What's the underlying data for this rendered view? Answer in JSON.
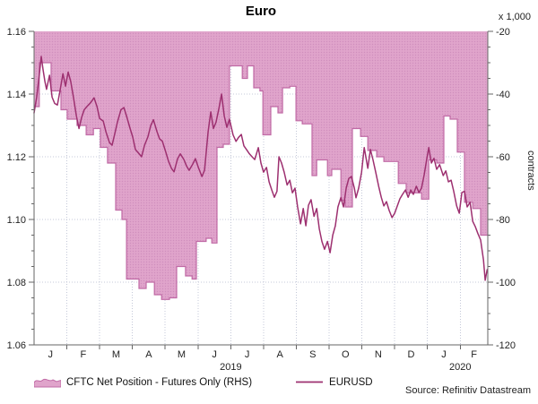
{
  "title": "Euro",
  "right_axis_unit": "x 1,000",
  "right_axis_label": "contracts",
  "source": "Source: Refinitiv Datastream",
  "legend": [
    {
      "label": "CFTC Net Position - Futures Only (RHS)",
      "type": "area"
    },
    {
      "label": "EURUSD",
      "type": "line"
    }
  ],
  "colors": {
    "area_fill": "#e0a4cb",
    "area_dot": "#cf8ebd",
    "area_edge": "#c06aa5",
    "line": "#9d3070",
    "grid": "#c4c8d8",
    "axis": "#666666",
    "text": "#222222"
  },
  "chart_data": {
    "type": "combo",
    "title": "Euro",
    "x_axis": {
      "months": [
        "J",
        "F",
        "M",
        "A",
        "M",
        "J",
        "J",
        "A",
        "S",
        "O",
        "N",
        "D",
        "J",
        "F"
      ],
      "years": [
        {
          "label": "2019",
          "month_index": 6
        },
        {
          "label": "2020",
          "month_index": 13
        }
      ],
      "domain_months": 13.84,
      "grid": true
    },
    "left_axis": {
      "min": 1.06,
      "max": 1.16,
      "ticks": [
        1.06,
        1.08,
        1.1,
        1.12,
        1.14,
        1.16
      ],
      "minor_step": 0.005,
      "series_name": "EURUSD"
    },
    "right_axis": {
      "min": -120,
      "max": -20,
      "ticks": [
        -20,
        -40,
        -60,
        -80,
        -100,
        -120
      ],
      "minor_step": 5,
      "unit": "x 1,000",
      "label": "contracts",
      "series_name": "CFTC Net Position - Futures Only (RHS)"
    },
    "series": [
      {
        "name": "CFTC Net Position - Futures Only (RHS)",
        "type": "step-area",
        "axis": "right",
        "points": [
          [
            0.0,
            -44
          ],
          [
            0.16,
            -30
          ],
          [
            0.52,
            -39
          ],
          [
            0.82,
            -45
          ],
          [
            1.01,
            -48
          ],
          [
            1.31,
            -50
          ],
          [
            1.59,
            -53
          ],
          [
            1.81,
            -51
          ],
          [
            2.02,
            -57
          ],
          [
            2.24,
            -62
          ],
          [
            2.49,
            -77
          ],
          [
            2.68,
            -80
          ],
          [
            2.82,
            -99
          ],
          [
            3.2,
            -102
          ],
          [
            3.42,
            -100
          ],
          [
            3.67,
            -104
          ],
          [
            3.89,
            -105.5
          ],
          [
            4.13,
            -105
          ],
          [
            4.35,
            -95
          ],
          [
            4.62,
            -98
          ],
          [
            4.82,
            -99
          ],
          [
            4.95,
            -87
          ],
          [
            5.25,
            -86
          ],
          [
            5.42,
            -87.5
          ],
          [
            5.58,
            -57
          ],
          [
            5.77,
            -56
          ],
          [
            5.96,
            -31
          ],
          [
            6.35,
            -35
          ],
          [
            6.51,
            -31
          ],
          [
            6.7,
            -38
          ],
          [
            6.89,
            -39
          ],
          [
            6.98,
            -53
          ],
          [
            7.22,
            -44
          ],
          [
            7.44,
            -46
          ],
          [
            7.58,
            -38
          ],
          [
            7.8,
            -37.5
          ],
          [
            7.99,
            -48.5
          ],
          [
            8.18,
            -49.5
          ],
          [
            8.48,
            -66
          ],
          [
            8.62,
            -61
          ],
          [
            8.95,
            -66
          ],
          [
            9.08,
            -64
          ],
          [
            9.36,
            -74
          ],
          [
            9.49,
            -76
          ],
          [
            9.71,
            -51
          ],
          [
            9.96,
            -53.5
          ],
          [
            10.18,
            -58
          ],
          [
            10.45,
            -60
          ],
          [
            10.67,
            -61.5
          ],
          [
            10.94,
            -61.5
          ],
          [
            11.11,
            -68.5
          ],
          [
            11.35,
            -71.5
          ],
          [
            11.6,
            -71.5
          ],
          [
            11.82,
            -73.5
          ],
          [
            12.04,
            -61
          ],
          [
            12.28,
            -62
          ],
          [
            12.5,
            -47
          ],
          [
            12.69,
            -48
          ],
          [
            12.91,
            -58.5
          ],
          [
            13.13,
            -74.5
          ],
          [
            13.38,
            -76.5
          ],
          [
            13.62,
            -85
          ]
        ]
      },
      {
        "name": "EURUSD",
        "type": "line",
        "axis": "left",
        "points": [
          [
            0.0,
            1.134
          ],
          [
            0.08,
            1.139
          ],
          [
            0.16,
            1.146
          ],
          [
            0.22,
            1.152
          ],
          [
            0.27,
            1.148
          ],
          [
            0.33,
            1.144
          ],
          [
            0.38,
            1.1415
          ],
          [
            0.47,
            1.146
          ],
          [
            0.55,
            1.139
          ],
          [
            0.63,
            1.137
          ],
          [
            0.71,
            1.1365
          ],
          [
            0.79,
            1.141
          ],
          [
            0.88,
            1.1465
          ],
          [
            0.96,
            1.1425
          ],
          [
            1.04,
            1.147
          ],
          [
            1.12,
            1.144
          ],
          [
            1.2,
            1.139
          ],
          [
            1.29,
            1.133
          ],
          [
            1.37,
            1.129
          ],
          [
            1.45,
            1.1325
          ],
          [
            1.53,
            1.135
          ],
          [
            1.61,
            1.136
          ],
          [
            1.72,
            1.1372
          ],
          [
            1.83,
            1.1388
          ],
          [
            1.92,
            1.136
          ],
          [
            2.0,
            1.1322
          ],
          [
            2.11,
            1.1314
          ],
          [
            2.19,
            1.128
          ],
          [
            2.3,
            1.1245
          ],
          [
            2.38,
            1.1237
          ],
          [
            2.46,
            1.1272
          ],
          [
            2.54,
            1.131
          ],
          [
            2.65,
            1.135
          ],
          [
            2.74,
            1.1357
          ],
          [
            2.82,
            1.133
          ],
          [
            2.93,
            1.129
          ],
          [
            3.01,
            1.1263
          ],
          [
            3.09,
            1.1223
          ],
          [
            3.2,
            1.121
          ],
          [
            3.28,
            1.12
          ],
          [
            3.37,
            1.1237
          ],
          [
            3.47,
            1.1263
          ],
          [
            3.56,
            1.13
          ],
          [
            3.64,
            1.1318
          ],
          [
            3.75,
            1.128
          ],
          [
            3.83,
            1.1257
          ],
          [
            3.91,
            1.125
          ],
          [
            4.02,
            1.1214
          ],
          [
            4.1,
            1.1186
          ],
          [
            4.19,
            1.1163
          ],
          [
            4.27,
            1.1152
          ],
          [
            4.38,
            1.1194
          ],
          [
            4.46,
            1.1209
          ],
          [
            4.57,
            1.1191
          ],
          [
            4.65,
            1.1171
          ],
          [
            4.73,
            1.1157
          ],
          [
            4.84,
            1.1177
          ],
          [
            4.92,
            1.1194
          ],
          [
            5.01,
            1.1166
          ],
          [
            5.12,
            1.1137
          ],
          [
            5.2,
            1.1157
          ],
          [
            5.31,
            1.128
          ],
          [
            5.39,
            1.1343
          ],
          [
            5.47,
            1.129
          ],
          [
            5.55,
            1.131
          ],
          [
            5.64,
            1.1355
          ],
          [
            5.72,
            1.14
          ],
          [
            5.8,
            1.133
          ],
          [
            5.88,
            1.1294
          ],
          [
            5.96,
            1.132
          ],
          [
            6.07,
            1.127
          ],
          [
            6.16,
            1.1249
          ],
          [
            6.24,
            1.1262
          ],
          [
            6.32,
            1.1271
          ],
          [
            6.4,
            1.1235
          ],
          [
            6.48,
            1.1223
          ],
          [
            6.57,
            1.1209
          ],
          [
            6.65,
            1.12
          ],
          [
            6.73,
            1.1191
          ],
          [
            6.84,
            1.1229
          ],
          [
            6.92,
            1.118
          ],
          [
            7.0,
            1.1151
          ],
          [
            7.09,
            1.1166
          ],
          [
            7.17,
            1.112
          ],
          [
            7.25,
            1.1094
          ],
          [
            7.33,
            1.1071
          ],
          [
            7.41,
            1.109
          ],
          [
            7.47,
            1.12
          ],
          [
            7.55,
            1.118
          ],
          [
            7.63,
            1.115
          ],
          [
            7.72,
            1.111
          ],
          [
            7.8,
            1.1125
          ],
          [
            7.88,
            1.1085
          ],
          [
            7.96,
            1.11
          ],
          [
            8.04,
            1.104
          ],
          [
            8.13,
            1.0986
          ],
          [
            8.21,
            1.1035
          ],
          [
            8.29,
            1.098
          ],
          [
            8.37,
            1.1045
          ],
          [
            8.45,
            1.1063
          ],
          [
            8.54,
            1.101
          ],
          [
            8.62,
            1.1035
          ],
          [
            8.7,
            1.097
          ],
          [
            8.78,
            1.093
          ],
          [
            8.86,
            1.0905
          ],
          [
            8.95,
            1.093
          ],
          [
            9.03,
            1.0894
          ],
          [
            9.11,
            1.095
          ],
          [
            9.19,
            1.098
          ],
          [
            9.27,
            1.104
          ],
          [
            9.36,
            1.107
          ],
          [
            9.44,
            1.104
          ],
          [
            9.52,
            1.11
          ],
          [
            9.6,
            1.1131
          ],
          [
            9.68,
            1.1137
          ],
          [
            9.77,
            1.11
          ],
          [
            9.82,
            1.1069
          ],
          [
            9.9,
            1.11
          ],
          [
            9.99,
            1.115
          ],
          [
            10.07,
            1.1229
          ],
          [
            10.12,
            1.12
          ],
          [
            10.18,
            1.1163
          ],
          [
            10.26,
            1.1223
          ],
          [
            10.34,
            1.119
          ],
          [
            10.42,
            1.1151
          ],
          [
            10.51,
            1.1106
          ],
          [
            10.59,
            1.1071
          ],
          [
            10.67,
            1.1043
          ],
          [
            10.75,
            1.1057
          ],
          [
            10.83,
            1.1029
          ],
          [
            10.92,
            1.1006
          ],
          [
            11.0,
            1.102
          ],
          [
            11.08,
            1.1043
          ],
          [
            11.16,
            1.1066
          ],
          [
            11.24,
            1.108
          ],
          [
            11.33,
            1.1094
          ],
          [
            11.41,
            1.1071
          ],
          [
            11.49,
            1.1094
          ],
          [
            11.57,
            1.108
          ],
          [
            11.66,
            1.1106
          ],
          [
            11.74,
            1.1086
          ],
          [
            11.82,
            1.11
          ],
          [
            11.9,
            1.1143
          ],
          [
            11.98,
            1.1194
          ],
          [
            12.04,
            1.1229
          ],
          [
            12.12,
            1.118
          ],
          [
            12.2,
            1.1195
          ],
          [
            12.28,
            1.116
          ],
          [
            12.37,
            1.1175
          ],
          [
            12.48,
            1.114
          ],
          [
            12.56,
            1.1155
          ],
          [
            12.64,
            1.112
          ],
          [
            12.72,
            1.1125
          ],
          [
            12.8,
            1.109
          ],
          [
            12.89,
            1.1043
          ],
          [
            12.97,
            1.102
          ],
          [
            13.05,
            1.1086
          ],
          [
            13.13,
            1.109
          ],
          [
            13.21,
            1.104
          ],
          [
            13.3,
            1.1055
          ],
          [
            13.38,
            1.0994
          ],
          [
            13.46,
            1.0977
          ],
          [
            13.54,
            1.0955
          ],
          [
            13.62,
            1.0935
          ],
          [
            13.71,
            1.0871
          ],
          [
            13.76,
            1.0806
          ],
          [
            13.82,
            1.084
          ]
        ]
      }
    ]
  }
}
